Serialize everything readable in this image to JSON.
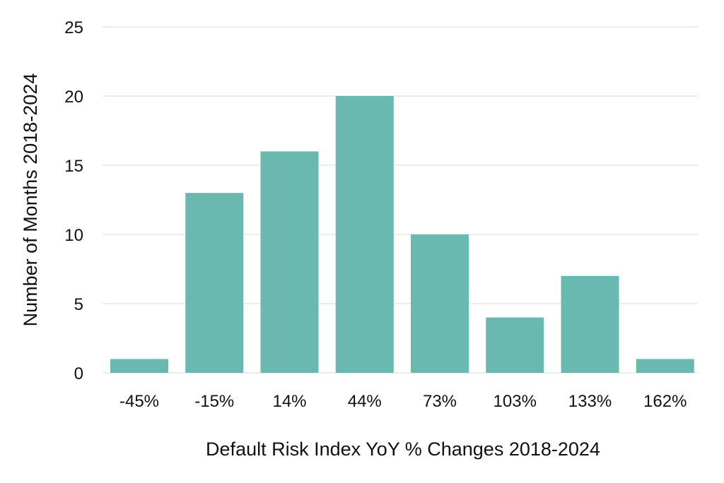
{
  "chart_data": {
    "type": "bar",
    "title": "",
    "xlabel": "Default Risk Index YoY % Changes 2018-2024",
    "ylabel": "Number of Months 2018-2024",
    "categories": [
      "-45%",
      "-15%",
      "14%",
      "44%",
      "73%",
      "103%",
      "133%",
      "162%"
    ],
    "values": [
      1,
      13,
      16,
      20,
      10,
      4,
      7,
      1
    ],
    "ylim": [
      0,
      25
    ],
    "yticks": [
      "0",
      "5",
      "10",
      "15",
      "20",
      "25"
    ],
    "grid": true,
    "legend": "none",
    "bar_color": "#69b9b0"
  }
}
